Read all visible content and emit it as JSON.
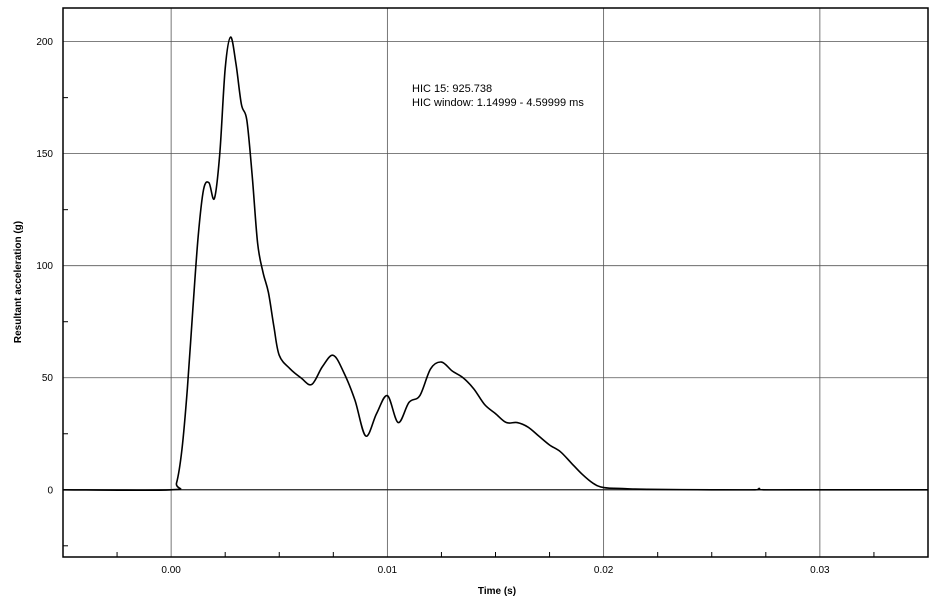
{
  "chart_data": {
    "type": "line",
    "title": "",
    "xlabel": "Time (s)",
    "ylabel": "Resultant acceleration (g)",
    "xlim": [
      -0.005,
      0.035
    ],
    "ylim": [
      -30,
      215
    ],
    "grid": true,
    "x_ticks": [
      0.0,
      0.01,
      0.02,
      0.03
    ],
    "x_tick_labels": [
      "0.00",
      "0.01",
      "0.02",
      "0.03"
    ],
    "y_ticks": [
      0,
      50,
      100,
      150,
      200
    ],
    "y_tick_labels": [
      "0",
      "50",
      "100",
      "150",
      "200"
    ],
    "annotations": [
      "HIC 15: 925.738",
      "HIC window: 1.14999 - 4.59999 ms"
    ],
    "series": [
      {
        "color": "#000000",
        "x": [
          -0.005,
          0.0,
          0.00025,
          0.0005,
          0.00075,
          0.001,
          0.00125,
          0.0015,
          0.00175,
          0.002,
          0.00225,
          0.0025,
          0.00275,
          0.003,
          0.00325,
          0.0035,
          0.00375,
          0.004,
          0.00425,
          0.0045,
          0.00475,
          0.005,
          0.0055,
          0.006,
          0.0065,
          0.007,
          0.0075,
          0.008,
          0.0085,
          0.009,
          0.0095,
          0.01,
          0.0105,
          0.011,
          0.0115,
          0.012,
          0.0125,
          0.013,
          0.0135,
          0.014,
          0.0145,
          0.015,
          0.0155,
          0.016,
          0.0165,
          0.017,
          0.0175,
          0.018,
          0.0185,
          0.019,
          0.0195,
          0.02,
          0.021,
          0.022,
          0.025,
          0.027,
          0.0272,
          0.0274,
          0.03,
          0.035
        ],
        "y": [
          0,
          0,
          3,
          18,
          45,
          80,
          113,
          134,
          137,
          130,
          150,
          188,
          202,
          190,
          172,
          165,
          140,
          110,
          97,
          88,
          73,
          60,
          54,
          50,
          47,
          55,
          60,
          52,
          40,
          24,
          34,
          42,
          30,
          39,
          42,
          54,
          57,
          53,
          50,
          45,
          38,
          34,
          30,
          30,
          28,
          24,
          20,
          17,
          12,
          7,
          3,
          1,
          0.5,
          0.2,
          0,
          0,
          0.6,
          0,
          0,
          0
        ]
      }
    ]
  }
}
